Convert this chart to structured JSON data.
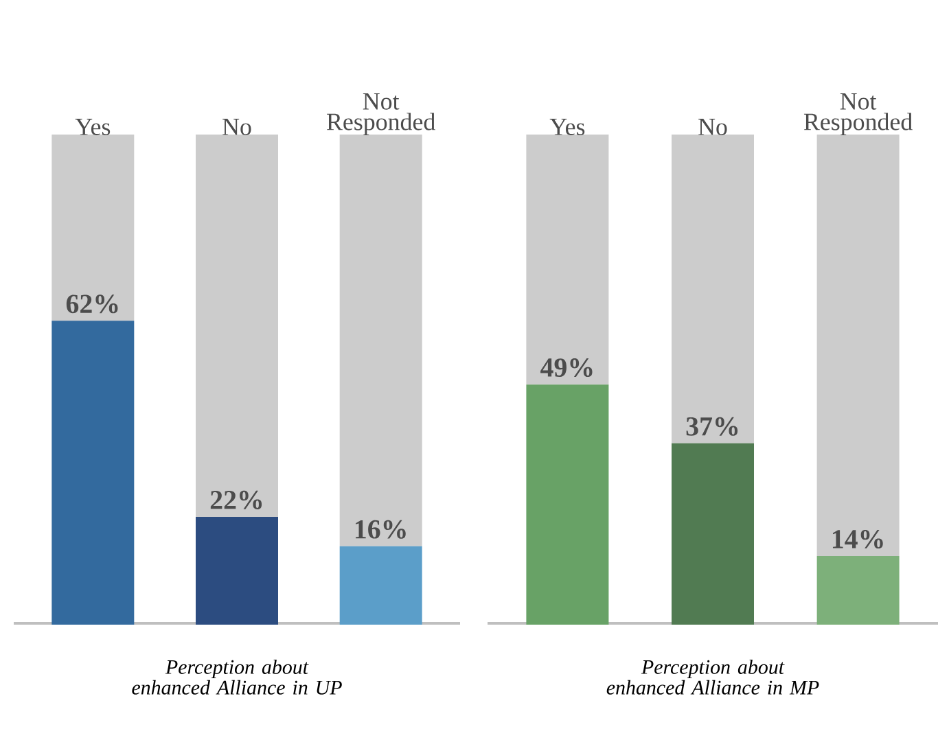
{
  "chart_data": [
    {
      "type": "bar",
      "stacked": true,
      "categories": [
        "Yes",
        "No",
        "Not Responded"
      ],
      "xlabel": "Perception about enhanced Alliance in UP",
      "tick_labels": "x",
      "series": [
        {
          "colors": [
            "#336a9e",
            "#2c4c80",
            "#5b9ec9"
          ],
          "values": [
            62,
            22,
            16
          ],
          "value_labels": [
            "62%",
            "22%",
            "16%"
          ]
        },
        {
          "color": "#cccccc",
          "values": [
            38,
            78,
            84
          ]
        }
      ]
    },
    {
      "type": "bar",
      "stacked": true,
      "categories": [
        "Yes",
        "No",
        "Not Responded"
      ],
      "xlabel": "Perception about enhanced Alliance in MP",
      "tick_labels": "x",
      "series": [
        {
          "colors": [
            "#68a266",
            "#517b52",
            "#7db07a"
          ],
          "values": [
            49,
            37,
            14
          ],
          "value_labels": [
            "49%",
            "37%",
            "14%"
          ]
        },
        {
          "color": "#cccccc",
          "values": [
            51,
            63,
            86
          ]
        }
      ]
    }
  ]
}
